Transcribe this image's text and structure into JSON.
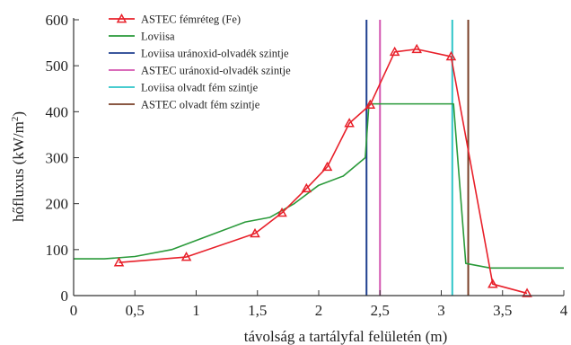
{
  "chart_data": {
    "type": "line",
    "title": "",
    "xlabel": "távolság a tartályfal felületén (m)",
    "ylabel_main": "hőfluxus (kW/m",
    "ylabel_sup": "2",
    "ylabel_close": ")",
    "xlim": [
      0,
      4
    ],
    "ylim": [
      0,
      600
    ],
    "xticks": [
      {
        "v": 0,
        "label": "0"
      },
      {
        "v": 0.5,
        "label": "0,5"
      },
      {
        "v": 1,
        "label": "1"
      },
      {
        "v": 1.5,
        "label": "1,5"
      },
      {
        "v": 2,
        "label": "2"
      },
      {
        "v": 2.5,
        "label": "2,5"
      },
      {
        "v": 3,
        "label": "3"
      },
      {
        "v": 3.5,
        "label": "3,5"
      },
      {
        "v": 4,
        "label": "4"
      }
    ],
    "yticks": [
      {
        "v": 0,
        "label": "0"
      },
      {
        "v": 100,
        "label": "100"
      },
      {
        "v": 200,
        "label": "200"
      },
      {
        "v": 300,
        "label": "300"
      },
      {
        "v": 400,
        "label": "400"
      },
      {
        "v": 500,
        "label": "500"
      },
      {
        "v": 600,
        "label": "600"
      }
    ],
    "grid": false,
    "legend_position": "top-left",
    "series": [
      {
        "name": "ASTEC fémréteg (Fe)",
        "color": "#e8202a",
        "marker": "triangle",
        "x": [
          0.37,
          0.92,
          1.48,
          1.7,
          1.9,
          2.07,
          2.25,
          2.42,
          2.62,
          2.8,
          3.08,
          3.42,
          3.7
        ],
        "y": [
          72,
          84,
          135,
          180,
          233,
          280,
          375,
          415,
          530,
          536,
          520,
          25,
          5
        ]
      },
      {
        "name": "Loviisa",
        "color": "#2a9a3a",
        "marker": "none",
        "x": [
          0,
          0.25,
          0.5,
          0.8,
          1.1,
          1.4,
          1.6,
          1.8,
          2.0,
          2.2,
          2.38,
          2.41,
          3.1,
          3.2,
          3.4,
          4.0
        ],
        "y": [
          80,
          80,
          85,
          100,
          130,
          160,
          170,
          200,
          240,
          260,
          300,
          417,
          417,
          70,
          60,
          60
        ]
      }
    ],
    "vlines": [
      {
        "name": "Loviisa uránoxid-olvadék szintje",
        "x": 2.39,
        "color": "#1f3f8f"
      },
      {
        "name": "ASTEC uránoxid-olvadék szintje",
        "x": 2.5,
        "color": "#d457b0"
      },
      {
        "name": "Loviisa olvadt fém szintje",
        "x": 3.09,
        "color": "#2ec4c8"
      },
      {
        "name": "ASTEC olvadt fém szintje",
        "x": 3.22,
        "color": "#7a4028"
      }
    ],
    "legend": [
      "ASTEC fémréteg (Fe)",
      "Loviisa",
      "Loviisa uránoxid-olvadék szintje",
      "ASTEC uránoxid-olvadék szintje",
      "Loviisa olvadt fém szintje",
      "ASTEC olvadt fém szintje"
    ]
  }
}
